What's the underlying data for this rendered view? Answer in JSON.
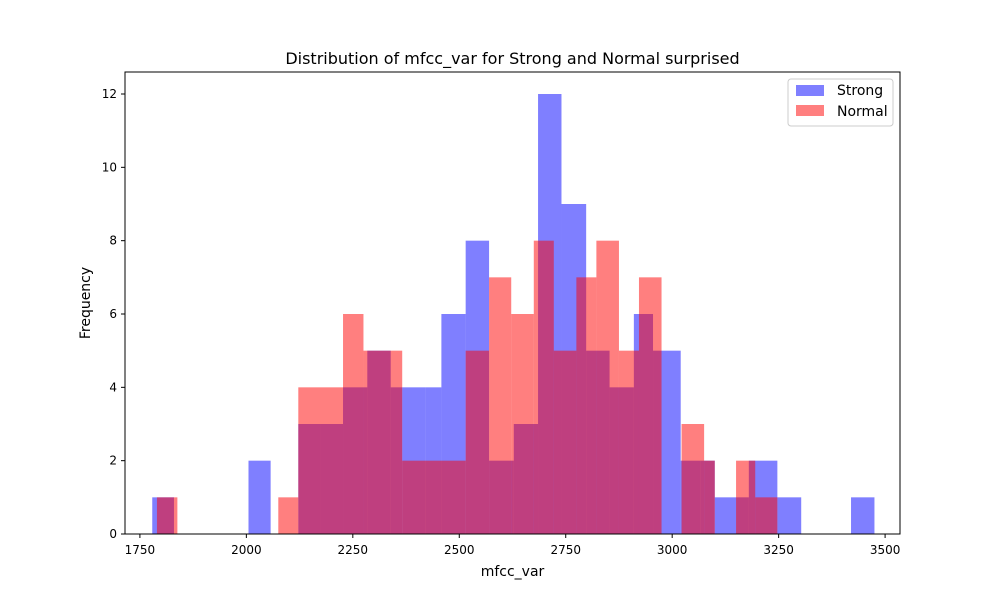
{
  "chart_data": {
    "type": "histogram",
    "title": "Distribution of mfcc_var for Strong and Normal surprised",
    "xlabel": "mfcc_var",
    "ylabel": "Frequency",
    "xlim": [
      1715,
      3535
    ],
    "ylim": [
      0,
      12.6
    ],
    "xticks": [
      1750,
      2000,
      2250,
      2500,
      2750,
      3000,
      3250,
      3500
    ],
    "yticks": [
      0,
      2,
      4,
      6,
      8,
      10,
      12
    ],
    "legend_position": "top-right",
    "series": [
      {
        "name": "Strong",
        "color": "#0000ff",
        "opacity": 0.5,
        "bins": [
          {
            "x0": 1779,
            "x1": 1830,
            "count": 1
          },
          {
            "x0": 2005,
            "x1": 2057,
            "count": 2
          },
          {
            "x0": 2122,
            "x1": 2173,
            "count": 3
          },
          {
            "x0": 2173,
            "x1": 2227,
            "count": 3
          },
          {
            "x0": 2227,
            "x1": 2284,
            "count": 4
          },
          {
            "x0": 2284,
            "x1": 2339,
            "count": 5
          },
          {
            "x0": 2339,
            "x1": 2366,
            "count": 4
          },
          {
            "x0": 2366,
            "x1": 2420,
            "count": 4
          },
          {
            "x0": 2420,
            "x1": 2458,
            "count": 4
          },
          {
            "x0": 2458,
            "x1": 2515,
            "count": 6
          },
          {
            "x0": 2515,
            "x1": 2570,
            "count": 8
          },
          {
            "x0": 2570,
            "x1": 2628,
            "count": 2
          },
          {
            "x0": 2628,
            "x1": 2685,
            "count": 3
          },
          {
            "x0": 2685,
            "x1": 2740,
            "count": 12
          },
          {
            "x0": 2740,
            "x1": 2798,
            "count": 9
          },
          {
            "x0": 2798,
            "x1": 2853,
            "count": 5
          },
          {
            "x0": 2853,
            "x1": 2910,
            "count": 4
          },
          {
            "x0": 2910,
            "x1": 2955,
            "count": 6
          },
          {
            "x0": 2955,
            "x1": 3020,
            "count": 5
          },
          {
            "x0": 3020,
            "x1": 3067,
            "count": 2
          },
          {
            "x0": 3067,
            "x1": 3100,
            "count": 2
          },
          {
            "x0": 3100,
            "x1": 3150,
            "count": 1
          },
          {
            "x0": 3150,
            "x1": 3180,
            "count": 1
          },
          {
            "x0": 3180,
            "x1": 3247,
            "count": 2
          },
          {
            "x0": 3247,
            "x1": 3303,
            "count": 1
          },
          {
            "x0": 3420,
            "x1": 3475,
            "count": 1
          }
        ]
      },
      {
        "name": "Normal",
        "color": "#ff0000",
        "opacity": 0.5,
        "bins": [
          {
            "x0": 1790,
            "x1": 1838,
            "count": 1
          },
          {
            "x0": 2075,
            "x1": 2122,
            "count": 1
          },
          {
            "x0": 2122,
            "x1": 2227,
            "count": 4
          },
          {
            "x0": 2227,
            "x1": 2275,
            "count": 6
          },
          {
            "x0": 2275,
            "x1": 2366,
            "count": 5
          },
          {
            "x0": 2366,
            "x1": 2515,
            "count": 2
          },
          {
            "x0": 2515,
            "x1": 2570,
            "count": 5
          },
          {
            "x0": 2570,
            "x1": 2622,
            "count": 7
          },
          {
            "x0": 2622,
            "x1": 2675,
            "count": 6
          },
          {
            "x0": 2675,
            "x1": 2722,
            "count": 8
          },
          {
            "x0": 2722,
            "x1": 2775,
            "count": 5
          },
          {
            "x0": 2775,
            "x1": 2822,
            "count": 7
          },
          {
            "x0": 2822,
            "x1": 2875,
            "count": 8
          },
          {
            "x0": 2875,
            "x1": 2922,
            "count": 5
          },
          {
            "x0": 2922,
            "x1": 2975,
            "count": 7
          },
          {
            "x0": 2975,
            "x1": 3022,
            "count": 0
          },
          {
            "x0": 3022,
            "x1": 3075,
            "count": 3
          },
          {
            "x0": 3075,
            "x1": 3100,
            "count": 2
          },
          {
            "x0": 3150,
            "x1": 3195,
            "count": 2
          },
          {
            "x0": 3195,
            "x1": 3247,
            "count": 1
          }
        ]
      }
    ]
  }
}
